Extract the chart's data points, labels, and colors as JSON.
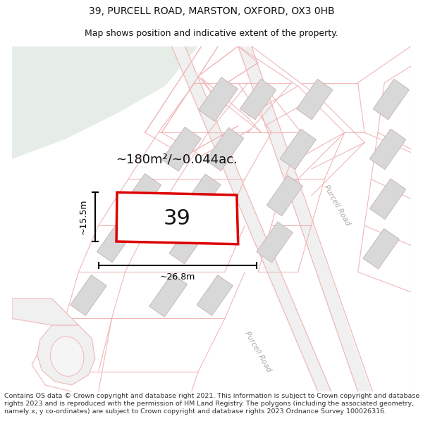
{
  "title_line1": "39, PURCELL ROAD, MARSTON, OXFORD, OX3 0HB",
  "title_line2": "Map shows position and indicative extent of the property.",
  "area_text": "~180m²/~0.044ac.",
  "label_number": "39",
  "dim_width": "~26.8m",
  "dim_height": "~15.5m",
  "footer_text": "Contains OS data © Crown copyright and database right 2021. This information is subject to Crown copyright and database rights 2023 and is reproduced with the permission of HM Land Registry. The polygons (including the associated geometry, namely x, y co-ordinates) are subject to Crown copyright and database rights 2023 Ordnance Survey 100026316.",
  "map_bg": "#f5f5f5",
  "green_color": "#e6ede6",
  "street_color": "#f0b8b8",
  "building_fill": "#d8d8d8",
  "building_edge": "#c8b0b0",
  "plot_color": "#dd0000",
  "road_label_color": "#b0a8a8",
  "title_color": "#111111",
  "footer_color": "#333333",
  "title_fontsize": 10,
  "subtitle_fontsize": 9,
  "footer_fontsize": 6.8,
  "number_fontsize": 22,
  "area_fontsize": 13,
  "dim_fontsize": 9,
  "road_label_fontsize": 7.5
}
